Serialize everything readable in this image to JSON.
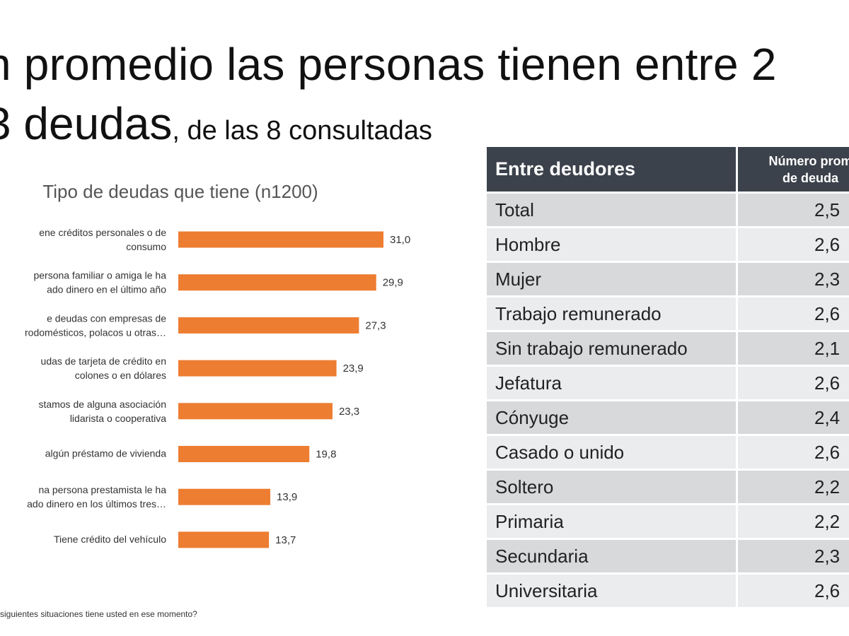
{
  "headline": {
    "line1": "n promedio las personas tienen entre 2",
    "line2_big": "3 deudas",
    "line2_small": ", de las 8 consultadas"
  },
  "footnote": "siguientes situaciones tiene usted en ese momento?",
  "colors": {
    "bar": "#ed7d31",
    "table_header": "#3c424b",
    "row_dark": "#d8d9db",
    "row_light": "#ebecee"
  },
  "chart_data": {
    "type": "bar",
    "orientation": "horizontal",
    "title": "Tipo de deudas que tiene (n1200)",
    "categories": [
      [
        "ene créditos personales o de",
        "consumo"
      ],
      [
        "persona familiar o amiga le ha",
        "ado dinero en el último año"
      ],
      [
        "e deudas con empresas de",
        "rodomésticos, polacos u otras…"
      ],
      [
        "udas de tarjeta de crédito en",
        "colones o en dólares"
      ],
      [
        "stamos de alguna asociación",
        "lidarista o cooperativa"
      ],
      [
        "algún préstamo de vivienda"
      ],
      [
        "na persona prestamista le ha",
        "ado dinero en los últimos tres…"
      ],
      [
        "Tiene crédito del vehículo"
      ]
    ],
    "values": [
      31.0,
      29.9,
      27.3,
      23.9,
      23.3,
      19.8,
      13.9,
      13.7
    ],
    "value_labels": [
      "31,0",
      "29,9",
      "27,3",
      "23,9",
      "23,3",
      "19,8",
      "13,9",
      "13,7"
    ],
    "xlim": [
      0,
      35
    ],
    "grid": false
  },
  "table": {
    "header_col1": "Entre deudores",
    "header_col2_line1": "Número prom",
    "header_col2_line2": "de deuda",
    "rows": [
      {
        "label": "Total",
        "value": "2,5"
      },
      {
        "label": "Hombre",
        "value": "2,6"
      },
      {
        "label": "Mujer",
        "value": "2,3"
      },
      {
        "label": "Trabajo remunerado",
        "value": "2,6"
      },
      {
        "label": "Sin trabajo remunerado",
        "value": "2,1"
      },
      {
        "label": "Jefatura",
        "value": "2,6"
      },
      {
        "label": "Cónyuge",
        "value": "2,4"
      },
      {
        "label": "Casado o unido",
        "value": "2,6"
      },
      {
        "label": "Soltero",
        "value": "2,2"
      },
      {
        "label": "Primaria",
        "value": "2,2"
      },
      {
        "label": "Secundaria",
        "value": "2,3"
      },
      {
        "label": "Universitaria",
        "value": "2,6"
      }
    ]
  }
}
